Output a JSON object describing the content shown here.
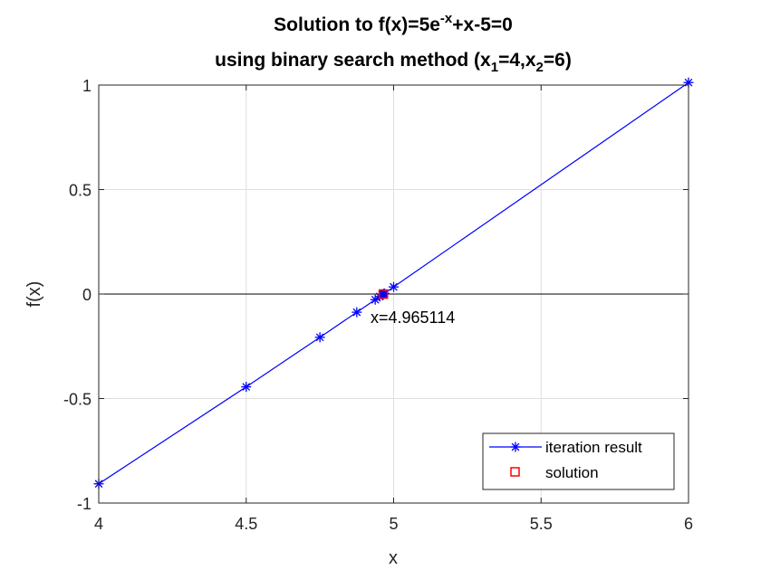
{
  "chart_data": {
    "type": "line",
    "title": {
      "line1_pre": "Solution to f(x)=5e",
      "line1_sup": "-x",
      "line1_post": "+x-5=0",
      "line2_pre": "using binary search method (x",
      "line2_sub1": "1",
      "line2_mid": "=4,x",
      "line2_sub2": "2",
      "line2_post": "=6)"
    },
    "xlabel": "x",
    "ylabel": "f(x)",
    "xlim": [
      4,
      6
    ],
    "ylim": [
      -1,
      1
    ],
    "xticks": [
      4,
      4.5,
      5,
      5.5,
      6
    ],
    "xtick_labels": [
      "4",
      "4.5",
      "5",
      "5.5",
      "6"
    ],
    "yticks": [
      -1,
      -0.5,
      0,
      0.5,
      1
    ],
    "ytick_labels": [
      "-1",
      "-0.5",
      "0",
      "0.5",
      "1"
    ],
    "grid": true,
    "legend_position": "bottom-right",
    "series": [
      {
        "name": "iteration result",
        "color": "#0000ff",
        "marker": "asterisk",
        "x": [
          4,
          6,
          5,
          4.5,
          4.75,
          4.875,
          4.9375,
          4.96875,
          4.953125,
          4.9609375,
          4.96484375,
          4.966796875
        ],
        "y": [
          -0.908,
          1.012,
          0.034,
          -0.444,
          -0.207,
          -0.087,
          -0.027,
          0.003,
          -0.012,
          -0.004,
          -0.001,
          0.002
        ]
      },
      {
        "name": "solution",
        "color": "#ff0000",
        "marker": "square",
        "x": [
          4.965114
        ],
        "y": [
          0
        ]
      }
    ],
    "annotation": {
      "text": "x=4.965114",
      "x": 4.965114,
      "y": 0
    }
  }
}
